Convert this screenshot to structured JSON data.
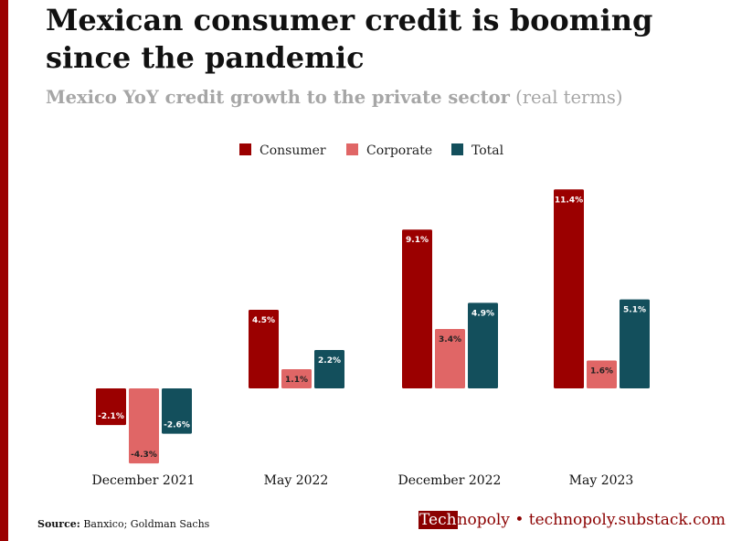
{
  "header": {
    "title": "Mexican consumer credit is booming since the pandemic",
    "subtitle_bold": "Mexico YoY credit growth to the private sector",
    "subtitle_rest": "(real terms)"
  },
  "footer": {
    "source_label": "Source:",
    "source_text": "Banxico; Goldman Sachs",
    "brand_highlight": "Tech",
    "brand_rest": "nopoly",
    "brand_separator": "•",
    "brand_url": "technopoly.substack.com"
  },
  "colors": {
    "accent": "#9b0000",
    "consumer": "#9b0000",
    "corporate": "#e06666",
    "total": "#134f5c",
    "subtitle": "#a6a6a6"
  },
  "chart_data": {
    "type": "bar",
    "title": "Mexico YoY credit growth to the private sector (real terms)",
    "categories": [
      "December 2021",
      "May 2022",
      "December 2022",
      "May 2023"
    ],
    "series": [
      {
        "name": "Consumer",
        "color": "#9b0000",
        "values": [
          -2.1,
          4.5,
          9.1,
          11.4
        ],
        "labels": [
          "-2.1%",
          "4.5%",
          "9.1%",
          "11.4%"
        ]
      },
      {
        "name": "Corporate",
        "color": "#e06666",
        "values": [
          -4.3,
          1.1,
          3.4,
          1.6
        ],
        "labels": [
          "-4.3%",
          "1.1%",
          "3.4%",
          "1.6%"
        ]
      },
      {
        "name": "Total",
        "color": "#134f5c",
        "values": [
          -2.6,
          2.2,
          4.9,
          5.1
        ],
        "labels": [
          "-2.6%",
          "2.2%",
          "4.9%",
          "5.1%"
        ]
      }
    ],
    "ylim": [
      -4.3,
      11.4
    ],
    "legend": "top-center",
    "grid": false,
    "xlabel": "",
    "ylabel": ""
  }
}
